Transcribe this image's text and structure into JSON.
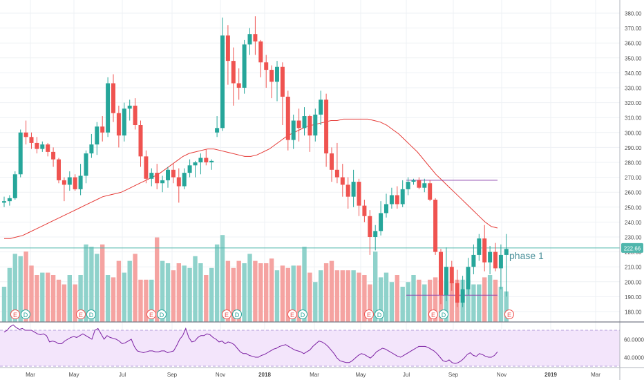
{
  "chart_data": {
    "type": "candlestick",
    "price_axis": {
      "ticks": [
        "380.00",
        "370.00",
        "360.00",
        "350.00",
        "340.00",
        "330.00",
        "320.00",
        "310.00",
        "300.00",
        "290.00",
        "280.00",
        "270.00",
        "260.00",
        "250.00",
        "240.00",
        "230.00",
        "220.00",
        "210.00",
        "200.00",
        "190.00",
        "180.00"
      ],
      "range": [
        173,
        383
      ],
      "current_price_label": "222.66",
      "current_price": 222.66
    },
    "time_axis": {
      "labels": [
        "Mar",
        "May",
        "Jul",
        "Sep",
        "Nov",
        "2018",
        "Mar",
        "May",
        "Jul",
        "Sep",
        "Nov",
        "2019",
        "Mar"
      ]
    },
    "candles": [
      [
        253,
        257,
        250,
        254
      ],
      [
        254,
        258,
        251,
        256
      ],
      [
        256,
        274,
        255,
        272
      ],
      [
        272,
        302,
        270,
        300
      ],
      [
        300,
        308,
        292,
        297
      ],
      [
        297,
        300,
        289,
        293
      ],
      [
        293,
        297,
        286,
        289
      ],
      [
        289,
        294,
        287,
        292
      ],
      [
        292,
        293,
        284,
        287
      ],
      [
        287,
        290,
        277,
        282
      ],
      [
        282,
        283,
        266,
        268
      ],
      [
        268,
        270,
        254,
        265
      ],
      [
        265,
        274,
        261,
        270
      ],
      [
        270,
        272,
        261,
        262
      ],
      [
        262,
        279,
        258,
        271
      ],
      [
        271,
        288,
        266,
        286
      ],
      [
        286,
        299,
        283,
        292
      ],
      [
        292,
        307,
        285,
        304
      ],
      [
        304,
        311,
        294,
        300
      ],
      [
        300,
        337,
        297,
        333
      ],
      [
        333,
        339,
        307,
        313
      ],
      [
        313,
        318,
        290,
        298
      ],
      [
        298,
        320,
        294,
        316
      ],
      [
        316,
        322,
        308,
        318
      ],
      [
        318,
        323,
        302,
        305
      ],
      [
        305,
        308,
        277,
        284
      ],
      [
        284,
        288,
        266,
        269
      ],
      [
        269,
        276,
        264,
        273
      ],
      [
        273,
        279,
        262,
        266
      ],
      [
        266,
        271,
        260,
        268
      ],
      [
        268,
        277,
        263,
        275
      ],
      [
        275,
        279,
        266,
        270
      ],
      [
        270,
        276,
        253,
        264
      ],
      [
        264,
        276,
        262,
        273
      ],
      [
        273,
        282,
        270,
        278
      ],
      [
        278,
        281,
        270,
        280
      ],
      [
        280,
        286,
        272,
        283
      ],
      [
        283,
        289,
        278,
        280
      ],
      [
        280,
        282,
        275,
        281
      ],
      [
        300,
        311,
        297,
        303
      ],
      [
        303,
        377,
        301,
        365
      ],
      [
        365,
        372,
        332,
        348
      ],
      [
        348,
        357,
        318,
        333
      ],
      [
        333,
        343,
        322,
        330
      ],
      [
        330,
        362,
        326,
        359
      ],
      [
        359,
        370,
        352,
        366
      ],
      [
        366,
        378,
        352,
        361
      ],
      [
        361,
        362,
        337,
        347
      ],
      [
        347,
        352,
        330,
        342
      ],
      [
        342,
        345,
        323,
        334
      ],
      [
        334,
        348,
        321,
        344
      ],
      [
        344,
        347,
        305,
        324
      ],
      [
        324,
        328,
        288,
        295
      ],
      [
        295,
        312,
        289,
        308
      ],
      [
        308,
        316,
        294,
        303
      ],
      [
        303,
        317,
        298,
        311
      ],
      [
        311,
        312,
        287,
        298
      ],
      [
        298,
        316,
        294,
        312
      ],
      [
        312,
        328,
        305,
        322
      ],
      [
        322,
        326,
        277,
        286
      ],
      [
        286,
        290,
        267,
        275
      ],
      [
        275,
        293,
        266,
        270
      ],
      [
        270,
        279,
        257,
        265
      ],
      [
        265,
        270,
        249,
        257
      ],
      [
        257,
        275,
        250,
        267
      ],
      [
        267,
        269,
        244,
        251
      ],
      [
        251,
        255,
        240,
        244
      ],
      [
        244,
        248,
        218,
        230
      ],
      [
        230,
        238,
        221,
        234
      ],
      [
        234,
        254,
        231,
        246
      ],
      [
        246,
        259,
        243,
        252
      ],
      [
        252,
        263,
        249,
        258
      ],
      [
        258,
        264,
        249,
        252
      ],
      [
        252,
        268,
        250,
        262
      ],
      [
        262,
        270,
        258,
        267
      ],
      [
        267,
        269,
        265,
        268
      ],
      [
        268,
        270,
        262,
        263
      ],
      [
        263,
        269,
        260,
        266
      ],
      [
        266,
        268,
        254,
        255
      ],
      [
        255,
        256,
        218,
        220
      ],
      [
        220,
        222,
        185,
        191
      ],
      [
        191,
        223,
        187,
        210
      ],
      [
        210,
        214,
        194,
        199
      ],
      [
        199,
        208,
        183,
        186
      ],
      [
        186,
        204,
        183,
        195
      ],
      [
        195,
        216,
        191,
        210
      ],
      [
        210,
        225,
        205,
        218
      ],
      [
        218,
        232,
        214,
        229
      ],
      [
        229,
        238,
        207,
        213
      ],
      [
        213,
        224,
        205,
        220
      ],
      [
        220,
        226,
        207,
        209
      ],
      [
        209,
        225,
        195,
        218
      ],
      [
        218,
        232,
        190,
        222
      ]
    ],
    "volume": [
      30,
      46,
      58,
      56,
      60,
      48,
      40,
      42,
      42,
      40,
      36,
      32,
      40,
      32,
      40,
      66,
      64,
      58,
      66,
      40,
      38,
      52,
      42,
      52,
      58,
      36,
      36,
      36,
      72,
      52,
      50,
      44,
      50,
      48,
      46,
      56,
      50,
      40,
      46,
      66,
      74,
      52,
      46,
      52,
      50,
      58,
      52,
      50,
      50,
      54,
      44,
      48,
      46,
      48,
      48,
      64,
      42,
      34,
      44,
      50,
      52,
      44,
      44,
      44,
      44,
      42,
      40,
      32,
      60,
      38,
      42,
      34,
      40,
      30,
      34,
      40,
      36,
      32,
      36,
      38,
      36,
      34,
      34,
      36,
      36,
      36,
      32,
      32,
      38,
      40,
      36,
      30,
      26
    ],
    "moving_average": [
      229,
      229,
      230,
      231,
      233,
      235,
      237,
      239,
      241,
      243,
      245,
      247,
      249,
      251,
      253,
      255,
      257,
      258,
      259,
      260,
      262,
      264,
      266,
      268,
      270,
      272,
      275,
      278,
      281,
      284,
      286,
      287,
      288,
      289,
      289,
      288,
      287,
      286,
      285,
      284,
      284,
      285,
      287,
      289,
      292,
      295,
      298,
      300,
      302,
      304,
      305,
      306,
      307,
      308,
      308,
      309,
      309,
      309,
      309,
      309,
      308,
      307,
      305,
      302,
      299,
      295,
      291,
      287,
      282,
      277,
      272,
      268,
      264,
      260,
      256,
      252,
      248,
      244,
      240,
      237,
      236
    ],
    "horizontal_line_price": 222.66,
    "resistance_line_price": 268,
    "support_line_price": 191,
    "annotation": "phase 1",
    "earnings_markers": [
      "E",
      "D",
      "E",
      "D",
      "E",
      "D",
      "E",
      "D",
      "E",
      "D",
      "E",
      "D",
      "E",
      "D",
      "E"
    ],
    "rsi": {
      "ticks": [
        "60.0000",
        "40.0000"
      ],
      "band": [
        30,
        70
      ],
      "values": [
        68,
        70,
        74,
        76,
        73,
        71,
        72,
        70,
        70,
        70,
        68,
        66,
        65,
        66,
        64,
        57,
        58,
        57,
        55,
        55,
        58,
        60,
        62,
        63,
        62,
        64,
        66,
        64,
        62,
        60,
        70,
        72,
        66,
        60,
        64,
        62,
        61,
        60,
        58,
        55,
        56,
        58,
        60,
        52,
        47,
        46,
        45,
        46,
        47,
        47,
        46,
        46,
        47,
        47,
        45,
        46,
        47,
        53,
        60,
        64,
        72,
        62,
        57,
        58,
        62,
        64,
        64,
        66,
        65,
        62,
        60,
        57,
        58,
        55,
        57,
        56,
        54,
        50,
        46,
        44,
        44,
        42,
        41,
        40,
        40,
        42,
        43,
        45,
        47,
        49,
        50,
        52,
        53,
        54,
        52,
        50,
        48,
        47,
        46,
        44,
        46,
        48,
        52,
        55,
        58,
        57,
        55,
        52,
        48,
        44,
        39,
        36,
        35,
        34,
        34,
        36,
        39,
        42,
        44,
        43,
        41,
        39,
        42,
        46,
        48,
        50,
        49,
        47,
        45,
        43,
        41,
        40,
        42,
        44,
        46,
        48,
        50,
        52,
        52,
        52,
        51,
        49,
        47,
        44,
        40,
        36,
        35,
        37,
        34,
        33,
        34,
        36,
        39,
        43,
        45,
        42,
        41,
        44,
        43,
        41,
        40,
        40,
        42,
        46
      ]
    },
    "colors": {
      "up": "#26a69a",
      "down": "#ef5350",
      "up_volume": "#8fd2cb",
      "down_volume": "#f5a3a1",
      "ma": "#e53935",
      "price_line": "#4fb6ac",
      "range_line": "#8e44ad",
      "rsi_line": "#7b1fa2",
      "rsi_band": "#f3e5fb"
    }
  }
}
